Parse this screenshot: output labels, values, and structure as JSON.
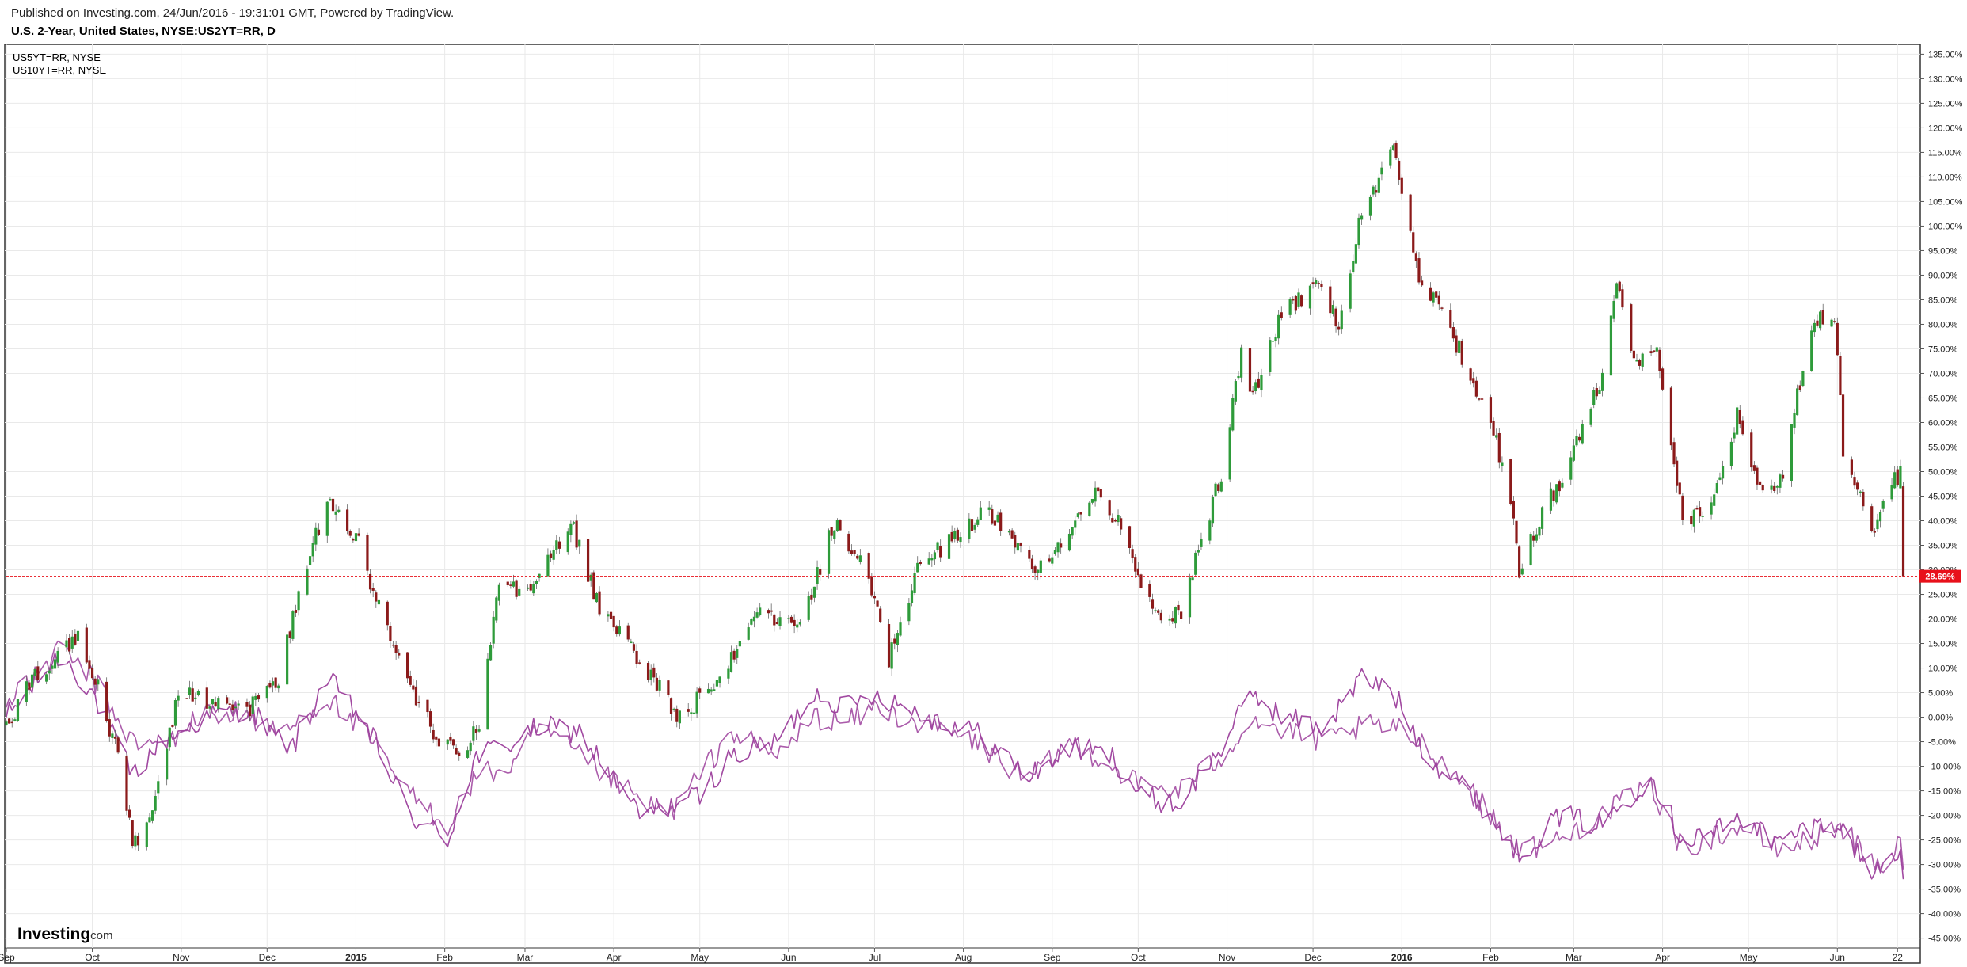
{
  "header": {
    "published": "Published on Investing.com, 24/Jun/2016 - 19:31:01 GMT, Powered by TradingView.",
    "title": "U.S. 2-Year, United States, NYSE:US2YT=RR, D"
  },
  "logo": {
    "bold": "Investing",
    "suffix": ".com"
  },
  "colors": {
    "up": "#2e9b3a",
    "down": "#8b1a1a",
    "compare": "#9c3f9c",
    "grid": "#e9e9e9",
    "last": "#e8101a"
  },
  "chart_data": {
    "type": "line",
    "legend": [
      "US5YT=RR, NYSE",
      "US10YT=RR, NYSE"
    ],
    "legend_position": "top-left",
    "grid": true,
    "y_axis_position": "right",
    "y_unit": "%",
    "ylim": [
      -47,
      137
    ],
    "y_ticks": [
      135,
      130,
      125,
      120,
      115,
      110,
      105,
      100,
      95,
      90,
      85,
      80,
      75,
      70,
      65,
      60,
      55,
      50,
      45,
      40,
      35,
      30,
      25,
      20,
      15,
      10,
      5,
      0,
      -5,
      -10,
      -15,
      -20,
      -25,
      -30,
      -35,
      -40,
      -45
    ],
    "y_tick_labels": [
      "135.00%",
      "130.00%",
      "125.00%",
      "120.00%",
      "115.00%",
      "110.00%",
      "105.00%",
      "100.00%",
      "95.00%",
      "90.00%",
      "85.00%",
      "80.00%",
      "75.00%",
      "70.00%",
      "65.00%",
      "60.00%",
      "55.00%",
      "50.00%",
      "45.00%",
      "40.00%",
      "35.00%",
      "30.00%",
      "25.00%",
      "20.00%",
      "15.00%",
      "10.00%",
      "5.00%",
      "0.00%",
      "-5.00%",
      "-10.00%",
      "-15.00%",
      "-20.00%",
      "-25.00%",
      "-30.00%",
      "-35.00%",
      "-40.00%",
      "-45.00%"
    ],
    "x_axis": {
      "start": "2014-09-01",
      "end": "2016-06-28",
      "labels": [
        {
          "date": "2014-09-01",
          "text": "Sep",
          "bold": false
        },
        {
          "date": "2014-10-01",
          "text": "Oct",
          "bold": false
        },
        {
          "date": "2014-11-01",
          "text": "Nov",
          "bold": false
        },
        {
          "date": "2014-12-01",
          "text": "Dec",
          "bold": false
        },
        {
          "date": "2015-01-01",
          "text": "2015",
          "bold": true
        },
        {
          "date": "2015-02-01",
          "text": "Feb",
          "bold": false
        },
        {
          "date": "2015-03-01",
          "text": "Mar",
          "bold": false
        },
        {
          "date": "2015-04-01",
          "text": "Apr",
          "bold": false
        },
        {
          "date": "2015-05-01",
          "text": "May",
          "bold": false
        },
        {
          "date": "2015-06-01",
          "text": "Jun",
          "bold": false
        },
        {
          "date": "2015-07-01",
          "text": "Jul",
          "bold": false
        },
        {
          "date": "2015-08-01",
          "text": "Aug",
          "bold": false
        },
        {
          "date": "2015-09-01",
          "text": "Sep",
          "bold": false
        },
        {
          "date": "2015-10-01",
          "text": "Oct",
          "bold": false
        },
        {
          "date": "2015-11-01",
          "text": "Nov",
          "bold": false
        },
        {
          "date": "2015-12-01",
          "text": "Dec",
          "bold": false
        },
        {
          "date": "2016-01-01",
          "text": "2016",
          "bold": true
        },
        {
          "date": "2016-02-01",
          "text": "Feb",
          "bold": false
        },
        {
          "date": "2016-03-01",
          "text": "Mar",
          "bold": false
        },
        {
          "date": "2016-04-01",
          "text": "Apr",
          "bold": false
        },
        {
          "date": "2016-05-01",
          "text": "May",
          "bold": false
        },
        {
          "date": "2016-06-01",
          "text": "Jun",
          "bold": false
        },
        {
          "date": "2016-06-22",
          "text": "22",
          "bold": false
        }
      ]
    },
    "last_value": 28.69,
    "last_value_label": "28.69%",
    "main_series": {
      "name": "US2YT=RR",
      "style": "candles",
      "anchors": [
        [
          "2014-09-01",
          -2
        ],
        [
          "2014-09-10",
          8
        ],
        [
          "2014-09-20",
          13
        ],
        [
          "2014-09-26",
          16
        ],
        [
          "2014-10-03",
          6
        ],
        [
          "2014-10-10",
          -8
        ],
        [
          "2014-10-15",
          -25
        ],
        [
          "2014-10-20",
          -23
        ],
        [
          "2014-10-31",
          5
        ],
        [
          "2014-11-10",
          3
        ],
        [
          "2014-11-25",
          2
        ],
        [
          "2014-12-05",
          8
        ],
        [
          "2014-12-12",
          25
        ],
        [
          "2014-12-22",
          45
        ],
        [
          "2015-01-02",
          35
        ],
        [
          "2015-01-15",
          12
        ],
        [
          "2015-01-30",
          -5
        ],
        [
          "2015-02-06",
          -8
        ],
        [
          "2015-02-13",
          -2
        ],
        [
          "2015-02-20",
          28
        ],
        [
          "2015-03-01",
          25
        ],
        [
          "2015-03-06",
          28
        ],
        [
          "2015-03-17",
          40
        ],
        [
          "2015-03-27",
          22
        ],
        [
          "2015-04-10",
          12
        ],
        [
          "2015-04-24",
          0
        ],
        [
          "2015-05-08",
          8
        ],
        [
          "2015-05-22",
          22
        ],
        [
          "2015-06-05",
          18
        ],
        [
          "2015-06-17",
          40
        ],
        [
          "2015-06-29",
          28
        ],
        [
          "2015-07-06",
          12
        ],
        [
          "2015-07-16",
          30
        ],
        [
          "2015-07-31",
          38
        ],
        [
          "2015-08-10",
          42
        ],
        [
          "2015-08-28",
          30
        ],
        [
          "2015-09-08",
          40
        ],
        [
          "2015-09-18",
          46
        ],
        [
          "2015-09-28",
          35
        ],
        [
          "2015-10-02",
          27
        ],
        [
          "2015-10-09",
          18
        ],
        [
          "2015-10-16",
          22
        ],
        [
          "2015-10-30",
          50
        ],
        [
          "2015-11-06",
          74
        ],
        [
          "2015-11-10",
          65
        ],
        [
          "2015-11-20",
          82
        ],
        [
          "2015-12-03",
          88
        ],
        [
          "2015-12-10",
          80
        ],
        [
          "2015-12-17",
          100
        ],
        [
          "2015-12-29",
          115
        ],
        [
          "2016-01-07",
          90
        ],
        [
          "2016-01-21",
          75
        ],
        [
          "2016-02-01",
          60
        ],
        [
          "2016-02-08",
          45
        ],
        [
          "2016-02-11",
          30
        ],
        [
          "2016-02-19",
          42
        ],
        [
          "2016-02-29",
          52
        ],
        [
          "2016-03-11",
          70
        ],
        [
          "2016-03-16",
          88
        ],
        [
          "2016-03-23",
          72
        ],
        [
          "2016-03-30",
          76
        ],
        [
          "2016-04-08",
          40
        ],
        [
          "2016-04-18",
          42
        ],
        [
          "2016-04-27",
          62
        ],
        [
          "2016-05-06",
          45
        ],
        [
          "2016-05-13",
          50
        ],
        [
          "2016-05-23",
          80
        ],
        [
          "2016-05-31",
          82
        ],
        [
          "2016-06-03",
          55
        ],
        [
          "2016-06-14",
          36
        ],
        [
          "2016-06-17",
          45
        ],
        [
          "2016-06-23",
          50
        ],
        [
          "2016-06-24",
          28.69
        ]
      ]
    },
    "series": [
      {
        "name": "US5YT=RR, NYSE",
        "values": [
          [
            "2014-09-01",
            0
          ],
          [
            "2014-09-20",
            13
          ],
          [
            "2014-10-01",
            5
          ],
          [
            "2014-10-15",
            -12
          ],
          [
            "2014-10-25",
            -5
          ],
          [
            "2014-11-10",
            0
          ],
          [
            "2014-11-25",
            2
          ],
          [
            "2014-12-03",
            -4
          ],
          [
            "2014-12-10",
            -6
          ],
          [
            "2014-12-22",
            8
          ],
          [
            "2015-01-05",
            -2
          ],
          [
            "2015-01-20",
            -20
          ],
          [
            "2015-02-02",
            -25
          ],
          [
            "2015-02-12",
            -8
          ],
          [
            "2015-02-25",
            -5
          ],
          [
            "2015-03-06",
            -2
          ],
          [
            "2015-03-20",
            -3
          ],
          [
            "2015-04-10",
            -20
          ],
          [
            "2015-04-20",
            -18
          ],
          [
            "2015-05-01",
            -16
          ],
          [
            "2015-05-12",
            -8
          ],
          [
            "2015-05-28",
            -5
          ],
          [
            "2015-06-10",
            5
          ],
          [
            "2015-06-22",
            2
          ],
          [
            "2015-07-01",
            5
          ],
          [
            "2015-07-20",
            0
          ],
          [
            "2015-08-05",
            -3
          ],
          [
            "2015-08-24",
            -12
          ],
          [
            "2015-09-08",
            -6
          ],
          [
            "2015-09-22",
            -8
          ],
          [
            "2015-10-02",
            -16
          ],
          [
            "2015-10-15",
            -18
          ],
          [
            "2015-10-30",
            -6
          ],
          [
            "2015-11-10",
            5
          ],
          [
            "2015-11-20",
            0
          ],
          [
            "2015-12-05",
            -2
          ],
          [
            "2015-12-18",
            8
          ],
          [
            "2015-12-29",
            5
          ],
          [
            "2016-01-10",
            -8
          ],
          [
            "2016-01-25",
            -15
          ],
          [
            "2016-02-11",
            -28
          ],
          [
            "2016-02-25",
            -20
          ],
          [
            "2016-03-10",
            -22
          ],
          [
            "2016-03-28",
            -12
          ],
          [
            "2016-04-08",
            -25
          ],
          [
            "2016-04-20",
            -23
          ],
          [
            "2016-05-01",
            -20
          ],
          [
            "2016-05-10",
            -26
          ],
          [
            "2016-05-24",
            -22
          ],
          [
            "2016-06-01",
            -22
          ],
          [
            "2016-06-14",
            -32
          ],
          [
            "2016-06-20",
            -28
          ],
          [
            "2016-06-23",
            -26
          ],
          [
            "2016-06-24",
            -33
          ]
        ]
      },
      {
        "name": "US10YT=RR, NYSE",
        "values": [
          [
            "2014-09-01",
            2
          ],
          [
            "2014-09-20",
            14
          ],
          [
            "2014-10-01",
            8
          ],
          [
            "2014-10-15",
            -5
          ],
          [
            "2014-10-25",
            -6
          ],
          [
            "2014-11-10",
            1
          ],
          [
            "2014-11-25",
            0
          ],
          [
            "2014-12-03",
            -3
          ],
          [
            "2014-12-10",
            -2
          ],
          [
            "2014-12-22",
            4
          ],
          [
            "2015-01-05",
            -4
          ],
          [
            "2015-01-20",
            -16
          ],
          [
            "2015-02-02",
            -22
          ],
          [
            "2015-02-12",
            -12
          ],
          [
            "2015-02-25",
            -10
          ],
          [
            "2015-03-06",
            -2
          ],
          [
            "2015-03-20",
            -8
          ],
          [
            "2015-04-10",
            -17
          ],
          [
            "2015-04-20",
            -20
          ],
          [
            "2015-05-01",
            -12
          ],
          [
            "2015-05-12",
            -3
          ],
          [
            "2015-05-28",
            -8
          ],
          [
            "2015-06-10",
            0
          ],
          [
            "2015-06-22",
            -1
          ],
          [
            "2015-07-01",
            2
          ],
          [
            "2015-07-20",
            -2
          ],
          [
            "2015-08-05",
            -5
          ],
          [
            "2015-08-24",
            -13
          ],
          [
            "2015-09-08",
            -5
          ],
          [
            "2015-09-22",
            -10
          ],
          [
            "2015-10-02",
            -14
          ],
          [
            "2015-10-15",
            -15
          ],
          [
            "2015-10-30",
            -8
          ],
          [
            "2015-11-10",
            0
          ],
          [
            "2015-11-20",
            -3
          ],
          [
            "2015-12-05",
            -5
          ],
          [
            "2015-12-18",
            -2
          ],
          [
            "2015-12-29",
            -2
          ],
          [
            "2016-01-10",
            -6
          ],
          [
            "2016-01-25",
            -15
          ],
          [
            "2016-02-11",
            -27
          ],
          [
            "2016-02-25",
            -25
          ],
          [
            "2016-03-10",
            -20
          ],
          [
            "2016-03-28",
            -14
          ],
          [
            "2016-04-08",
            -27
          ],
          [
            "2016-04-20",
            -24
          ],
          [
            "2016-05-01",
            -22
          ],
          [
            "2016-05-10",
            -27
          ],
          [
            "2016-05-24",
            -25
          ],
          [
            "2016-06-01",
            -21
          ],
          [
            "2016-06-14",
            -31
          ],
          [
            "2016-06-20",
            -29
          ],
          [
            "2016-06-23",
            -25
          ],
          [
            "2016-06-24",
            -31
          ]
        ]
      }
    ]
  }
}
